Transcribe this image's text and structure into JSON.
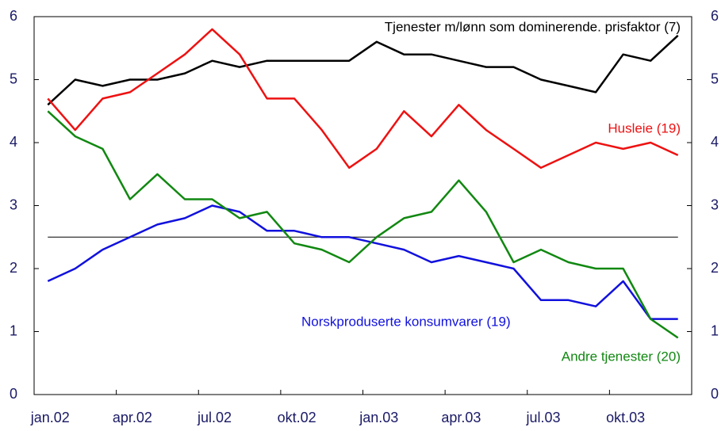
{
  "chart_data": {
    "type": "line",
    "categories": [
      "jan.02",
      null,
      null,
      "apr.02",
      null,
      null,
      "jul.02",
      null,
      null,
      "okt.02",
      null,
      null,
      "jan.03",
      null,
      null,
      "apr.03",
      null,
      null,
      "jul.03",
      null,
      null,
      "okt.03",
      null,
      null
    ],
    "series": [
      {
        "name": "Tjenester m/lønn som dominerende. prisfaktor (7)",
        "color": "#000000",
        "values": [
          4.6,
          5.0,
          4.9,
          5.0,
          5.0,
          5.1,
          5.3,
          5.2,
          5.3,
          5.3,
          5.3,
          5.3,
          5.6,
          5.4,
          5.4,
          5.3,
          5.2,
          5.2,
          5.0,
          4.9,
          4.8,
          5.4,
          5.3,
          5.7
        ]
      },
      {
        "name": "Husleie (19)",
        "color": "#ee1111",
        "values": [
          4.7,
          4.2,
          4.7,
          4.8,
          5.1,
          5.4,
          5.8,
          5.4,
          4.7,
          4.7,
          4.2,
          3.6,
          3.9,
          4.5,
          4.1,
          4.6,
          4.2,
          3.9,
          3.6,
          3.8,
          4.0,
          3.9,
          4.0,
          3.8
        ]
      },
      {
        "name": "Norskproduserte konsumvarer (19)",
        "color": "#1111dd",
        "values": [
          1.8,
          2.0,
          2.3,
          2.5,
          2.7,
          2.8,
          3.0,
          2.9,
          2.6,
          2.6,
          2.5,
          2.5,
          2.4,
          2.3,
          2.1,
          2.2,
          2.1,
          2.0,
          1.5,
          1.5,
          1.4,
          1.8,
          1.2,
          1.2
        ]
      },
      {
        "name": "Andre tjenester (20)",
        "color": "#118811",
        "values": [
          4.5,
          4.1,
          3.9,
          3.1,
          3.5,
          3.1,
          3.1,
          2.8,
          2.9,
          2.4,
          2.3,
          2.1,
          2.5,
          2.8,
          2.9,
          3.4,
          2.9,
          2.1,
          2.3,
          2.1,
          2.0,
          2.0,
          1.2,
          0.9
        ]
      }
    ],
    "reference_line": 2.5,
    "ylim": [
      0,
      6
    ],
    "yticks": [
      0,
      1,
      2,
      3,
      4,
      5,
      6
    ]
  }
}
